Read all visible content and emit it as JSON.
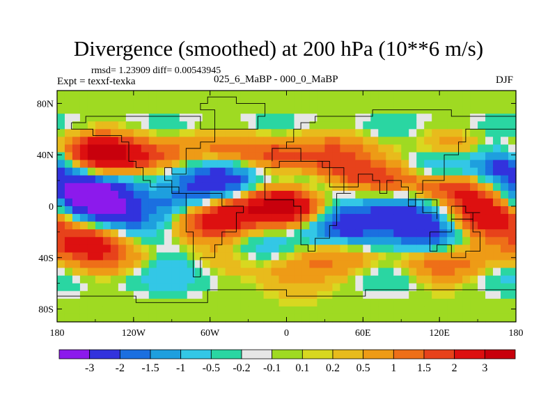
{
  "chart_data": {
    "type": "heatmap",
    "title": "Divergence (smoothed) at 200 hPa (10**6 m/s)",
    "left_subtitle_top": "rmsd= 1.23909 diff= 0.00543945",
    "left_subtitle": "Expt = texxf-texka",
    "center_subtitle": "025_6_MaBP - 000_0_MaBP",
    "right_subtitle": "DJF",
    "x_ticks": [
      {
        "lon": -180,
        "label": "180"
      },
      {
        "lon": -120,
        "label": "120W"
      },
      {
        "lon": -60,
        "label": "60W"
      },
      {
        "lon": 0,
        "label": "0"
      },
      {
        "lon": 60,
        "label": "60E"
      },
      {
        "lon": 120,
        "label": "120E"
      },
      {
        "lon": 180,
        "label": "180"
      }
    ],
    "y_ticks": [
      {
        "lat": 80,
        "label": "80N"
      },
      {
        "lat": 40,
        "label": "40N"
      },
      {
        "lat": 0,
        "label": "0"
      },
      {
        "lat": -40,
        "label": "40S"
      },
      {
        "lat": -80,
        "label": "80S"
      }
    ],
    "xlim": [
      -180,
      180
    ],
    "ylim": [
      -90,
      90
    ],
    "contour_levels": [
      -3,
      -2,
      -1.5,
      -1,
      -0.5,
      -0.2,
      -0.1,
      0.1,
      0.2,
      0.5,
      1,
      1.5,
      2,
      3
    ],
    "colorbar_labels": [
      "-3",
      "-2",
      "-1.5",
      "-1",
      "-0.5",
      "-0.2",
      "-0.1",
      "0.1",
      "0.2",
      "0.5",
      "1",
      "1.5",
      "2",
      "3"
    ],
    "colors": [
      "#8c1aec",
      "#3232dd",
      "#1b6fe0",
      "#1e9fde",
      "#33c7e6",
      "#2ad6a2",
      "#e6e6e6",
      "#9fda22",
      "#d8d820",
      "#e8bb1c",
      "#ee9b16",
      "#ee6f18",
      "#e7421b",
      "#dd1010",
      "#c8000c"
    ],
    "blobs": [
      {
        "lon": -150,
        "lat": 38,
        "v": 3.2
      },
      {
        "lon": -168,
        "lat": 8,
        "v": -2.2
      },
      {
        "lon": -150,
        "lat": 5,
        "v": -2.8
      },
      {
        "lon": -155,
        "lat": -25,
        "v": 3.0
      },
      {
        "lon": -105,
        "lat": 38,
        "v": 1.6
      },
      {
        "lon": -90,
        "lat": 2,
        "v": -3.0
      },
      {
        "lon": -60,
        "lat": -12,
        "v": 3.5
      },
      {
        "lon": -52,
        "lat": 20,
        "v": -2.0
      },
      {
        "lon": -120,
        "lat": -10,
        "v": -1.2
      },
      {
        "lon": -35,
        "lat": -5,
        "v": 1.4
      },
      {
        "lon": 10,
        "lat": 0,
        "v": 2.8
      },
      {
        "lon": 22,
        "lat": 12,
        "v": -1.6
      },
      {
        "lon": 45,
        "lat": 25,
        "v": 2.6
      },
      {
        "lon": 50,
        "lat": -12,
        "v": -1.8
      },
      {
        "lon": 90,
        "lat": 0,
        "v": -3.5
      },
      {
        "lon": 95,
        "lat": 24,
        "v": 3.2
      },
      {
        "lon": 110,
        "lat": 28,
        "v": -3.0
      },
      {
        "lon": 130,
        "lat": 15,
        "v": 3.0
      },
      {
        "lon": 115,
        "lat": -22,
        "v": -2.0
      },
      {
        "lon": 150,
        "lat": -12,
        "v": 3.2
      },
      {
        "lon": 175,
        "lat": 32,
        "v": -2.2
      },
      {
        "lon": -10,
        "lat": 38,
        "v": 1.8
      },
      {
        "lon": -20,
        "lat": -35,
        "v": -1.0
      },
      {
        "lon": -80,
        "lat": -45,
        "v": -0.8
      },
      {
        "lon": 0,
        "lat": -55,
        "v": 1.4
      },
      {
        "lon": 120,
        "lat": -50,
        "v": 0.8
      }
    ]
  }
}
